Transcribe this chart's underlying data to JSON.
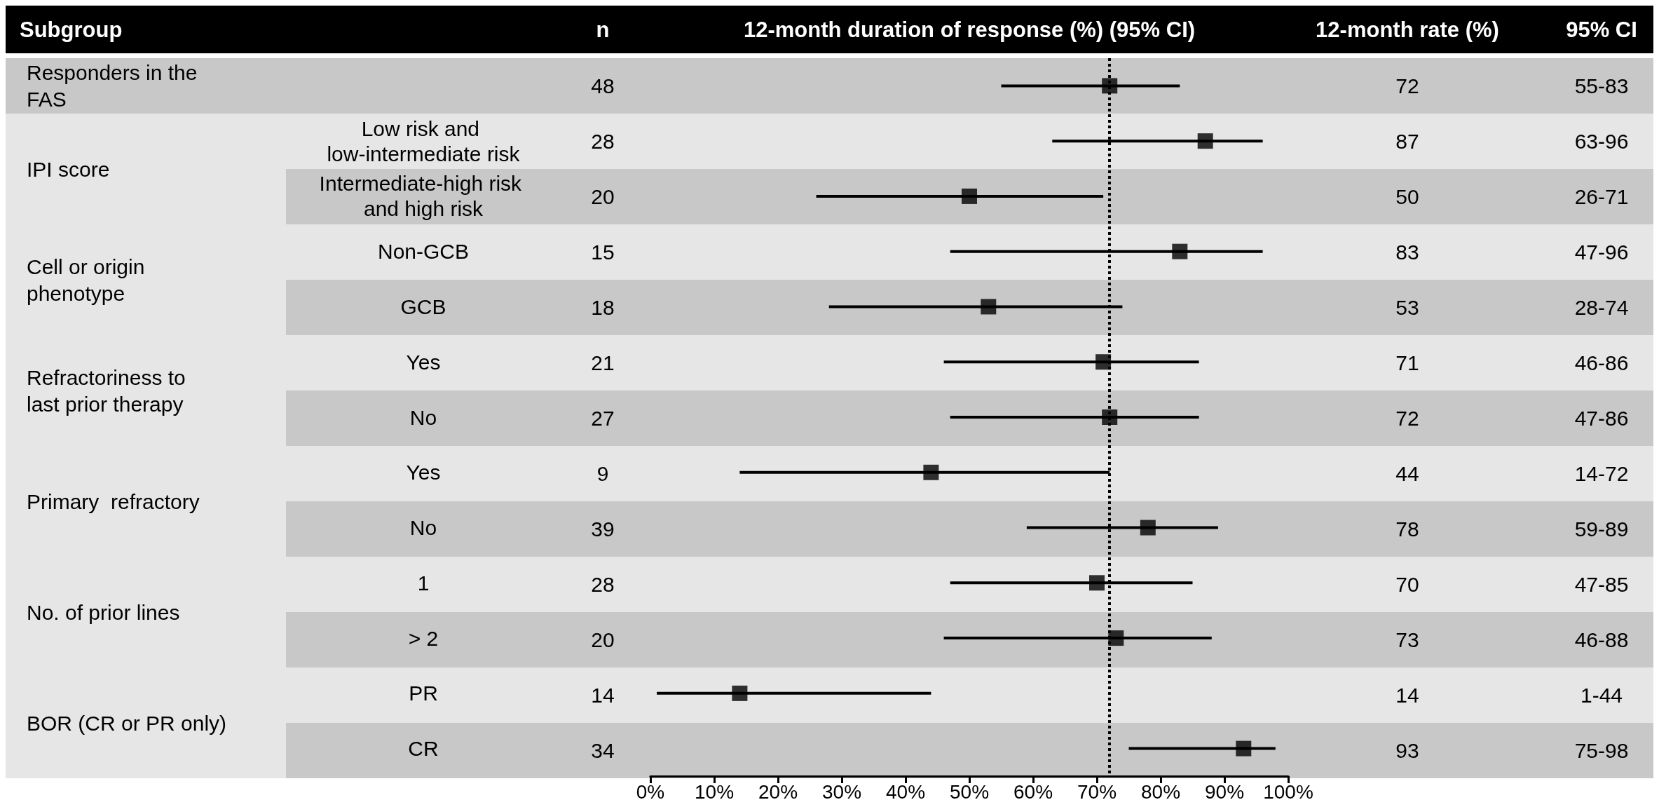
{
  "chart_data": {
    "type": "scatter",
    "orientation": "horizontal",
    "xlabel": "12-month duration of response (%) (95% CI)",
    "categories": [
      null,
      "Low risk and low-intermediate risk",
      "Intermediate-high risk and high risk",
      "Non-GCB",
      "GCB",
      "Yes",
      "No",
      "Yes",
      "No",
      "1",
      "> 2",
      "PR",
      "CR"
    ],
    "values": [
      72,
      87,
      50,
      83,
      53,
      71,
      72,
      44,
      78,
      70,
      73,
      14,
      93
    ],
    "errors": [
      [
        55,
        83
      ],
      [
        63,
        96
      ],
      [
        26,
        71
      ],
      [
        47,
        96
      ],
      [
        28,
        74
      ],
      [
        46,
        86
      ],
      [
        47,
        86
      ],
      [
        14,
        72
      ],
      [
        59,
        89
      ],
      [
        47,
        85
      ],
      [
        46,
        88
      ],
      [
        1,
        44
      ],
      [
        75,
        98
      ]
    ],
    "value_labels": [
      "72",
      "87",
      "50",
      "83",
      "53",
      "71",
      "72",
      "44",
      "78",
      "70",
      "73",
      "14",
      "93"
    ],
    "color": "#000000",
    "marker": "square",
    "xlim": [
      0,
      100
    ],
    "xticks": [
      {
        "value": 0,
        "label": "0%"
      },
      {
        "value": 10,
        "label": "10%"
      },
      {
        "value": 20,
        "label": "20%"
      },
      {
        "value": 30,
        "label": "30%"
      },
      {
        "value": 40,
        "label": "40%"
      },
      {
        "value": 50,
        "label": "50%"
      },
      {
        "value": 60,
        "label": "60%"
      },
      {
        "value": 70,
        "label": "70%"
      },
      {
        "value": 80,
        "label": "80%"
      },
      {
        "value": 90,
        "label": "90%"
      },
      {
        "value": 100,
        "label": "100%"
      }
    ],
    "ref_lines": [
      {
        "axis": "x",
        "value": 72,
        "line_style": "dotted"
      }
    ],
    "annotations": [
      "Subgroup",
      "n",
      "12-month rate (%)",
      "95% CI",
      "Responders in the FAS",
      "IPI score",
      "Cell or origin phenotype",
      "Refractoriness to last prior therapy",
      "Primary  refractory",
      "No. of prior lines",
      "BOR (CR or PR only)",
      "48",
      "28",
      "20",
      "15",
      "18",
      "21",
      "27",
      "9",
      "39",
      "28",
      "20",
      "14",
      "34",
      "55-83",
      "63-96",
      "26-71",
      "47-96",
      "28-74",
      "46-86",
      "47-86",
      "14-72",
      "59-89",
      "47-85",
      "46-88",
      "1-44",
      "75-98"
    ]
  }
}
